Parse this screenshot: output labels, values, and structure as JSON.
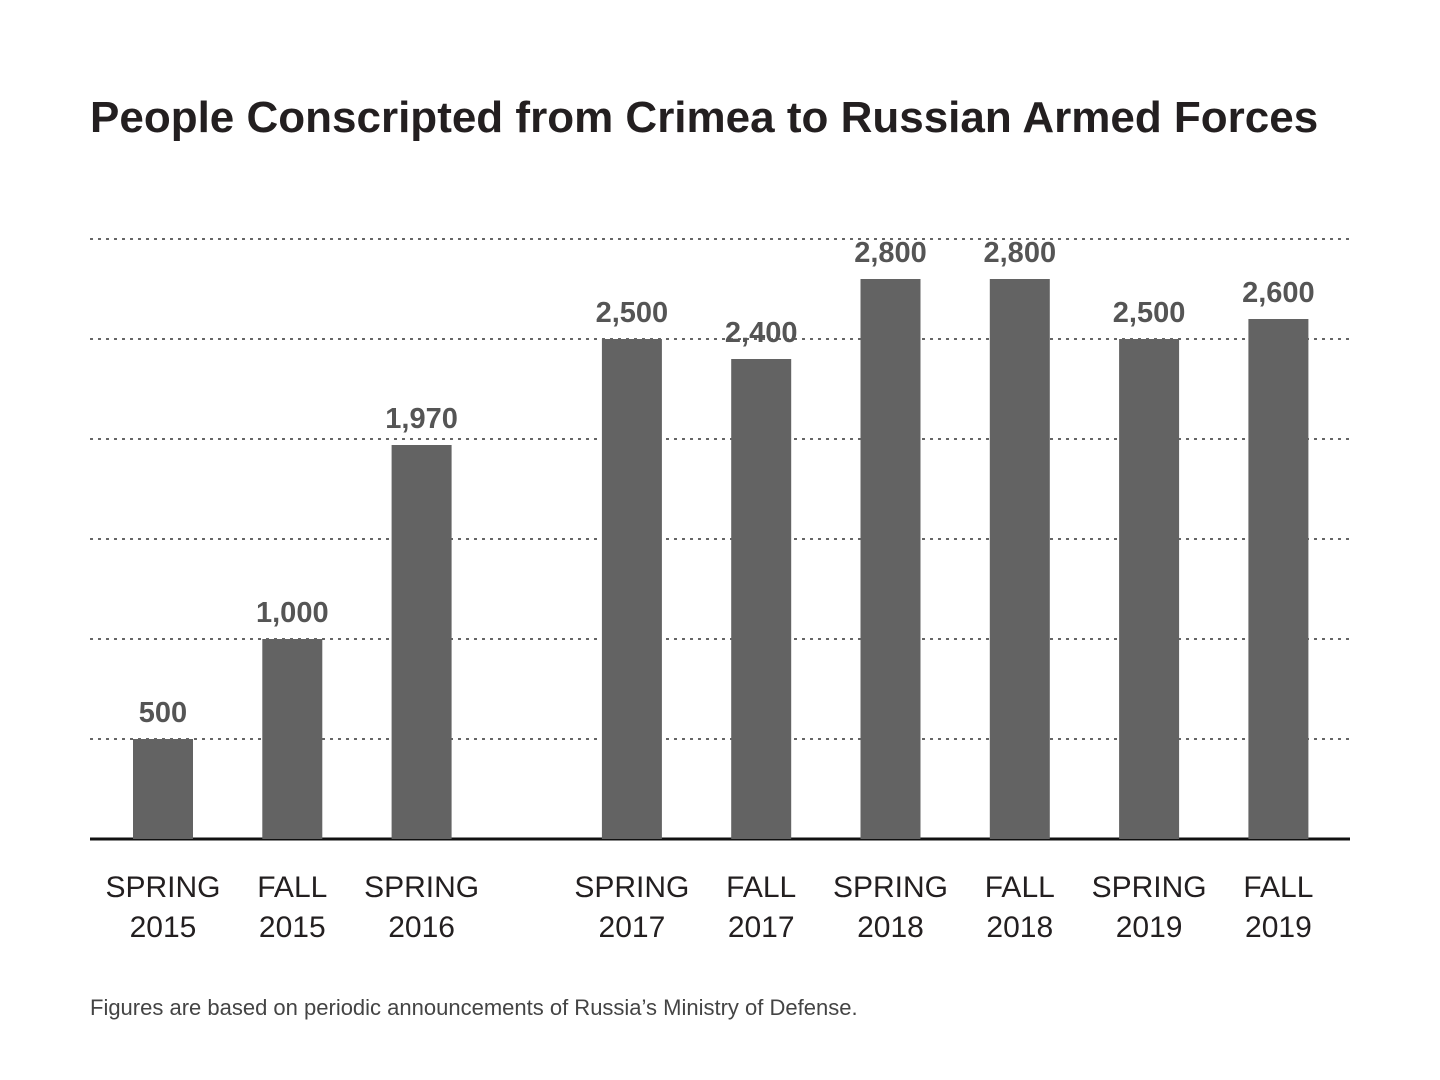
{
  "chart_data": {
    "type": "bar",
    "title": "People Conscripted from Crimea to Russian Armed Forces",
    "categories": [
      "SPRING 2015",
      "FALL 2015",
      "SPRING 2016",
      "SPRING 2017",
      "FALL 2017",
      "SPRING 2018",
      "FALL 2018",
      "SPRING 2019",
      "FALL 2019"
    ],
    "values": [
      500,
      1000,
      1970,
      2500,
      2400,
      2800,
      2800,
      2500,
      2600
    ],
    "value_labels": [
      "500",
      "1,000",
      "1,970",
      "2,500",
      "2,400",
      "2,800",
      "2,800",
      "2,500",
      "2,600"
    ],
    "color": "#636363",
    "ylim": [
      0,
      3000
    ],
    "yticks": [
      500,
      1000,
      1500,
      2000,
      2500,
      3000
    ],
    "grid": true,
    "note": "Figures are based on periodic announcements of Russia’s Ministry of Defense."
  }
}
